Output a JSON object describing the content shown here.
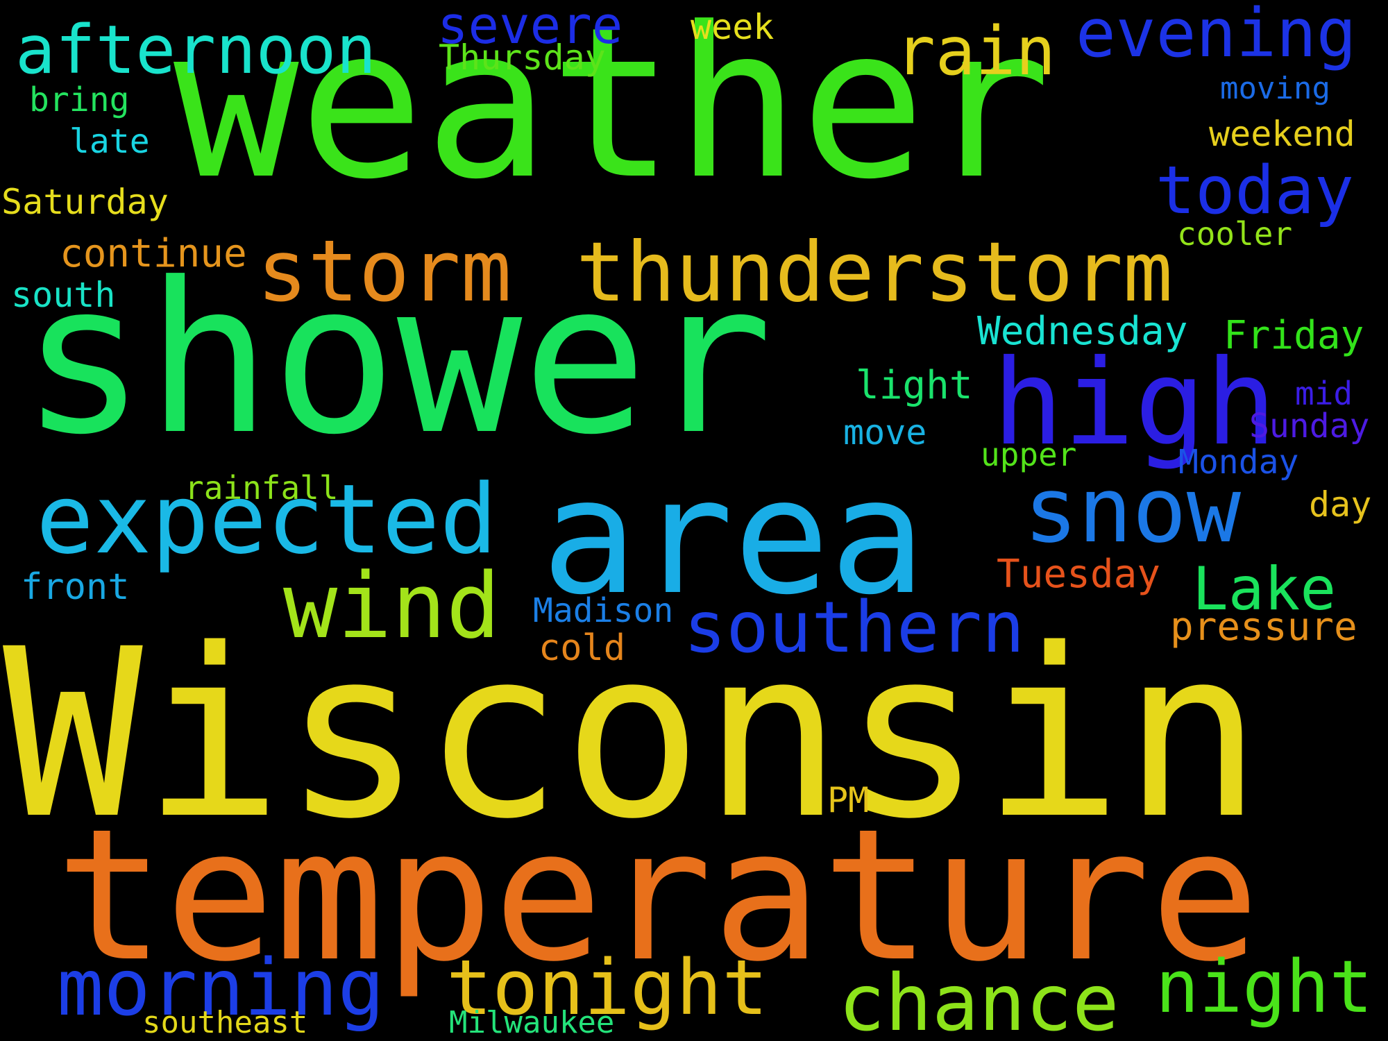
{
  "background": "#000000",
  "words": [
    {
      "text": "Wisconsin",
      "color": "#e6d81a"
    },
    {
      "text": "weather",
      "color": "#3ae31a"
    },
    {
      "text": "shower",
      "color": "#18e25c"
    },
    {
      "text": "temperature",
      "color": "#e8701b"
    },
    {
      "text": "area",
      "color": "#19ade6"
    },
    {
      "text": "thunderstorm",
      "color": "#e6bb1d"
    },
    {
      "text": "storm",
      "color": "#e58a1d"
    },
    {
      "text": "high",
      "color": "#2b1ee3"
    },
    {
      "text": "expected",
      "color": "#1ab9e6"
    },
    {
      "text": "snow",
      "color": "#1b78e6"
    },
    {
      "text": "wind",
      "color": "#a3e31a"
    },
    {
      "text": "afternoon",
      "color": "#19e3cc"
    },
    {
      "text": "evening",
      "color": "#1c33e6"
    },
    {
      "text": "rain",
      "color": "#e6d01d"
    },
    {
      "text": "southern",
      "color": "#1b3de6"
    },
    {
      "text": "today",
      "color": "#1b2fe6"
    },
    {
      "text": "tonight",
      "color": "#e6c01a"
    },
    {
      "text": "morning",
      "color": "#1c3ee6"
    },
    {
      "text": "chance",
      "color": "#8de31a"
    },
    {
      "text": "night",
      "color": "#4ae31a"
    },
    {
      "text": "Lake",
      "color": "#1ae35c"
    },
    {
      "text": "severe",
      "color": "#1c2de6"
    },
    {
      "text": "week",
      "color": "#e6e01d"
    },
    {
      "text": "Thursday",
      "color": "#5de31a"
    },
    {
      "text": "bring",
      "color": "#24e35f"
    },
    {
      "text": "late",
      "color": "#19d5e3"
    },
    {
      "text": "moving",
      "color": "#1b6be6"
    },
    {
      "text": "weekend",
      "color": "#e6cf1d"
    },
    {
      "text": "Saturday",
      "color": "#e6dd1d"
    },
    {
      "text": "continue",
      "color": "#e5951d"
    },
    {
      "text": "cooler",
      "color": "#93e31a"
    },
    {
      "text": "south",
      "color": "#19e3c6"
    },
    {
      "text": "Wednesday",
      "color": "#19e3d2"
    },
    {
      "text": "Friday",
      "color": "#32e31a"
    },
    {
      "text": "light",
      "color": "#1ae36c"
    },
    {
      "text": "mid",
      "color": "#3b1de6"
    },
    {
      "text": "Sunday",
      "color": "#4d1be3"
    },
    {
      "text": "move",
      "color": "#19b2e3"
    },
    {
      "text": "upper",
      "color": "#53e31a"
    },
    {
      "text": "Monday",
      "color": "#1b52e6"
    },
    {
      "text": "rainfall",
      "color": "#8ce31a"
    },
    {
      "text": "day",
      "color": "#e6c21d"
    },
    {
      "text": "front",
      "color": "#19a8e3"
    },
    {
      "text": "Tuesday",
      "color": "#e6521b"
    },
    {
      "text": "Madison",
      "color": "#1b7fe6"
    },
    {
      "text": "pressure",
      "color": "#e6901b"
    },
    {
      "text": "cold",
      "color": "#e5851c"
    },
    {
      "text": "PM",
      "color": "#e6c41b"
    },
    {
      "text": "southeast",
      "color": "#e3d81a"
    },
    {
      "text": "Milwaukee",
      "color": "#24e37a"
    }
  ]
}
